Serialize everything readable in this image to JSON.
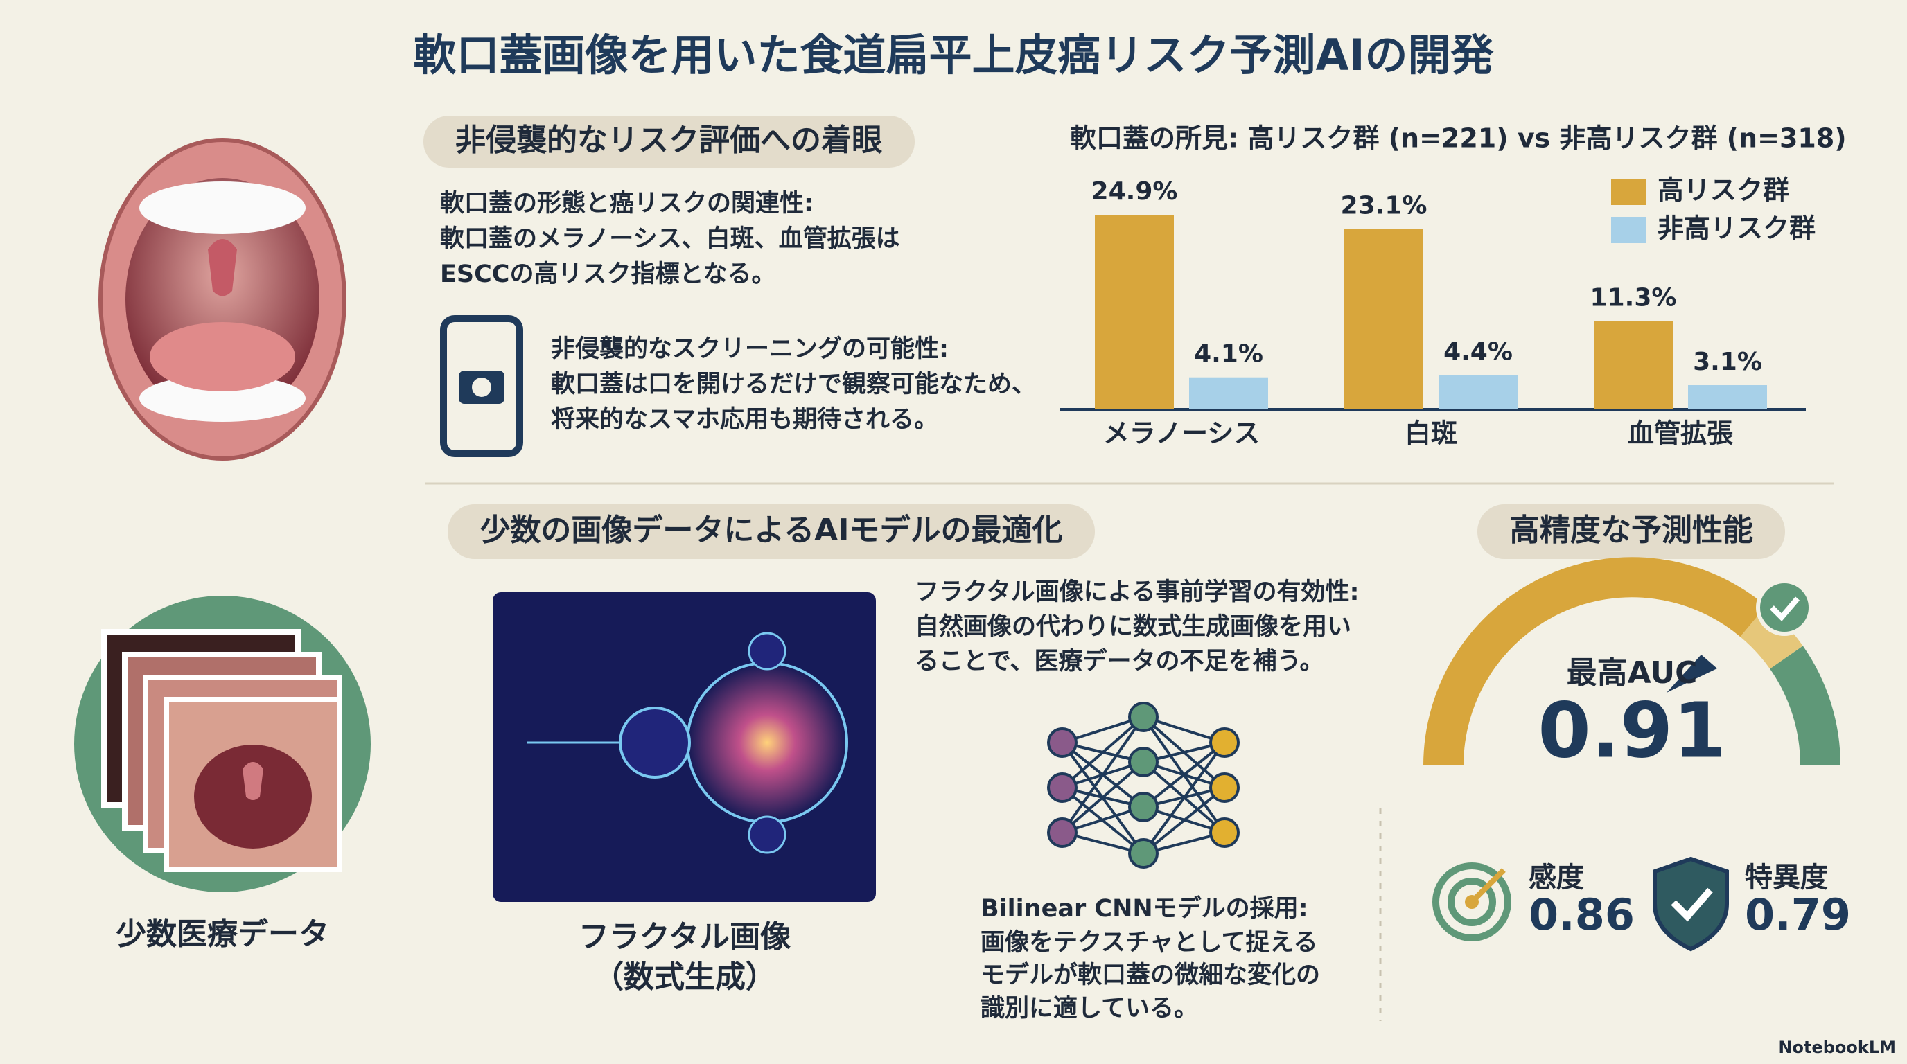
{
  "title": "軟口蓋画像を用いた食道扁平上皮癌リスク予測AIの開発",
  "section1": {
    "heading": "非侵襲的なリスク評価への着眼",
    "point1": {
      "title": "軟口蓋の形態と癌リスクの関連性:",
      "lines": [
        "軟口蓋のメラノーシス、白斑、血管拡張は",
        "ESCCの高リスク指標となる。"
      ]
    },
    "point2": {
      "title": "非侵襲的なスクリーニングの可能性:",
      "lines": [
        "軟口蓋は口を開けるだけで観察可能なため、",
        "将来的なスマホ応用も期待される。"
      ]
    }
  },
  "chart_data": {
    "type": "bar",
    "title": "軟口蓋の所見: 高リスク群 (n=221) vs 非高リスク群 (n=318)",
    "categories": [
      "メラノーシス",
      "白斑",
      "血管拡張"
    ],
    "series": [
      {
        "name": "高リスク群",
        "color": "#d8a63c",
        "values": [
          24.9,
          23.1,
          11.3
        ],
        "value_labels": [
          "24.9%",
          "23.1%",
          "11.3%"
        ]
      },
      {
        "name": "非高リスク群",
        "color": "#a7d0e8",
        "values": [
          4.1,
          4.4,
          3.1
        ],
        "value_labels": [
          "4.1%",
          "4.4%",
          "3.1%"
        ]
      }
    ],
    "legend": "upper-right"
  },
  "section2": {
    "heading": "少数の画像データによるAIモデルの最適化",
    "label_images": "少数医療データ",
    "label_fractal": [
      "フラクタル画像",
      "（数式生成）"
    ],
    "point1": {
      "title": "フラクタル画像による事前学習の有効性:",
      "lines": [
        "自然画像の代わりに数式生成画像を用い",
        "ることで、医療データの不足を補う。"
      ]
    },
    "point2": {
      "title": "Bilinear CNNモデルの採用:",
      "lines": [
        "画像をテクスチャとして捉える",
        "モデルが軟口蓋の微細な変化の",
        "識別に適している。"
      ]
    }
  },
  "section3": {
    "heading": "高精度な予測性能",
    "auc": {
      "label": "最高AUC",
      "value": 0.91
    },
    "sensitivity": {
      "label": "感度",
      "value": 0.86
    },
    "specificity": {
      "label": "特異度",
      "value": 0.79
    }
  },
  "footer": "NotebookLM"
}
